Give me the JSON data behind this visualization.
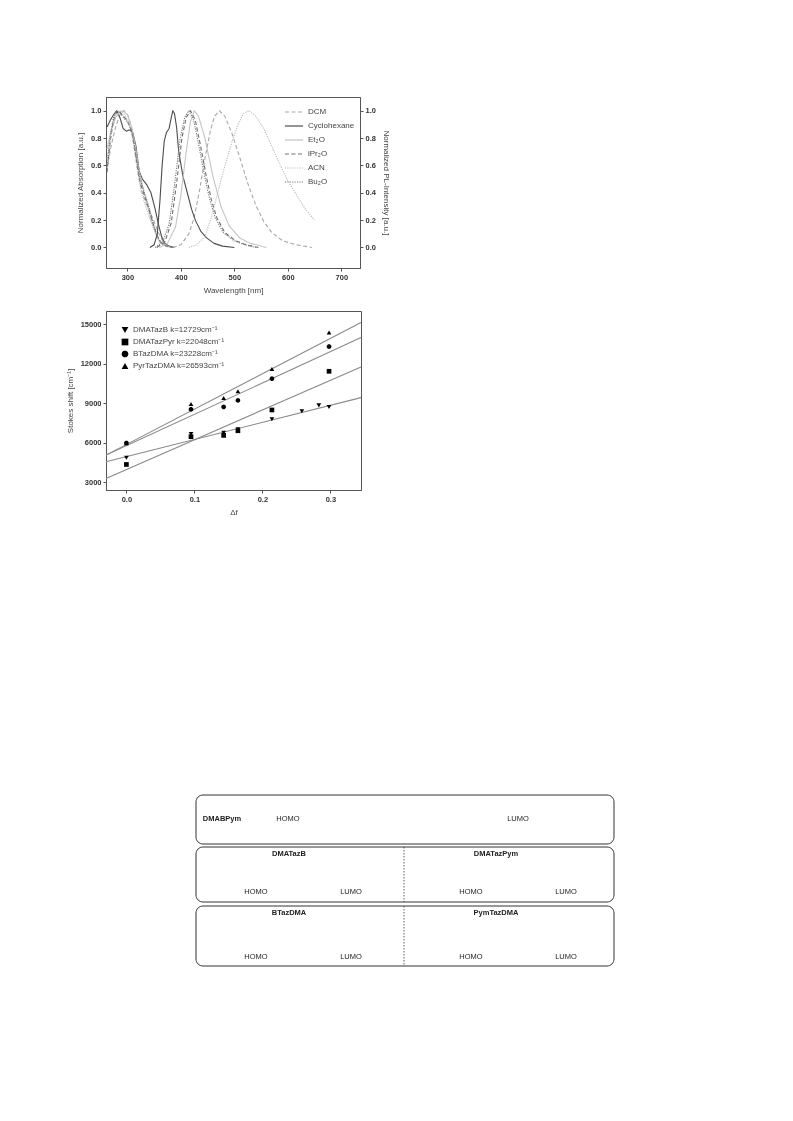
{
  "chart_data": [
    {
      "type": "line",
      "xlabel": "Wavelength [nm]",
      "ylabel": "Normalized Absorption [a.u.]",
      "y2label": "Normalized PL-Intensity [a.u.]",
      "xlim": [
        260,
        735
      ],
      "xticks": [
        300,
        400,
        500,
        600,
        700
      ],
      "ylim": [
        -0.15,
        1.1
      ],
      "yticks": [
        {
          "value": 0,
          "label": "0.0"
        },
        0.2,
        0.4,
        0.6,
        0.8,
        {
          "value": 1,
          "label": "1.0"
        }
      ],
      "y2lim": [
        -0.15,
        1.1
      ],
      "y2ticks": [
        {
          "value": 0,
          "label": "0.0"
        },
        0.2,
        0.4,
        0.6,
        0.8,
        {
          "value": 1,
          "label": "1.0"
        }
      ],
      "legend": "top right",
      "series": [
        {
          "name": "DCM",
          "color": "#a8a8a8",
          "line_style": "dashed",
          "x": [
            262,
            270,
            278,
            286,
            294,
            302,
            310,
            318,
            326,
            334,
            342,
            350,
            358,
            366,
            374,
            385
          ],
          "values": [
            0.58,
            0.75,
            0.88,
            0.97,
            1.0,
            0.96,
            0.84,
            0.62,
            0.42,
            0.33,
            0.26,
            0.19,
            0.11,
            0.05,
            0.01,
            0.0
          ]
        },
        {
          "color": "#a8a8a8",
          "line_style": "dashed",
          "axis": "y2",
          "x": [
            385,
            400,
            415,
            425,
            435,
            445,
            455,
            463,
            472,
            482,
            495,
            510,
            525,
            540,
            555,
            570,
            590,
            615,
            645
          ],
          "values": [
            0.0,
            0.02,
            0.1,
            0.22,
            0.42,
            0.65,
            0.85,
            0.96,
            1.0,
            0.96,
            0.84,
            0.66,
            0.47,
            0.31,
            0.19,
            0.11,
            0.05,
            0.02,
            0.0
          ]
        },
        {
          "name": "Cyclohexane",
          "color": "#4d4d4d",
          "line_style": "solid",
          "x": [
            262,
            268,
            274,
            280,
            286,
            292,
            298,
            304,
            310,
            316,
            322,
            328,
            336,
            344,
            352,
            358,
            364,
            370,
            378,
            388
          ],
          "values": [
            0.88,
            0.93,
            0.97,
            1.0,
            0.95,
            0.87,
            0.85,
            0.86,
            0.84,
            0.74,
            0.56,
            0.5,
            0.46,
            0.4,
            0.28,
            0.17,
            0.08,
            0.03,
            0.01,
            0.0
          ]
        },
        {
          "color": "#4d4d4d",
          "line_style": "solid",
          "axis": "y2",
          "x": [
            342,
            350,
            356,
            361,
            365,
            369,
            373,
            378,
            382,
            385,
            388,
            392,
            396,
            404,
            412,
            420,
            427,
            437,
            448,
            462,
            478,
            500
          ],
          "values": [
            0.0,
            0.02,
            0.1,
            0.35,
            0.6,
            0.78,
            0.84,
            0.87,
            0.95,
            1.0,
            0.98,
            0.88,
            0.7,
            0.52,
            0.4,
            0.28,
            0.2,
            0.12,
            0.07,
            0.03,
            0.01,
            0.0
          ]
        },
        {
          "name": "Et₂O",
          "color": "#c4c4c4",
          "line_style": "solid",
          "x": [
            262,
            270,
            278,
            286,
            292,
            300,
            308,
            315,
            322,
            330,
            338,
            346,
            354,
            362,
            372,
            385
          ],
          "values": [
            0.72,
            0.86,
            0.95,
            0.99,
            1.0,
            0.97,
            0.88,
            0.74,
            0.56,
            0.42,
            0.3,
            0.18,
            0.09,
            0.03,
            0.01,
            0.0
          ]
        },
        {
          "color": "#c4c4c4",
          "line_style": "solid",
          "axis": "y2",
          "x": [
            360,
            375,
            390,
            400,
            410,
            418,
            425,
            433,
            445,
            460,
            475,
            490,
            510,
            530,
            560
          ],
          "values": [
            0.0,
            0.03,
            0.15,
            0.38,
            0.7,
            0.92,
            1.0,
            0.96,
            0.8,
            0.52,
            0.3,
            0.16,
            0.07,
            0.03,
            0.0
          ]
        },
        {
          "name": "iPr₂O",
          "color": "#6e6e6e",
          "line_style": "dashed",
          "x": [
            262,
            268,
            274,
            280,
            284,
            292,
            300,
            308,
            315,
            322,
            330,
            338,
            346,
            354,
            362,
            372,
            385
          ],
          "values": [
            0.55,
            0.78,
            0.93,
            0.99,
            1.0,
            0.96,
            0.93,
            0.85,
            0.68,
            0.5,
            0.4,
            0.31,
            0.2,
            0.1,
            0.04,
            0.01,
            0.0
          ]
        },
        {
          "color": "#6e6e6e",
          "line_style": "dashed",
          "axis": "y2",
          "x": [
            355,
            370,
            382,
            392,
            402,
            410,
            418,
            427,
            437,
            447,
            457,
            467,
            482,
            502,
            522,
            545
          ],
          "values": [
            0.0,
            0.04,
            0.18,
            0.47,
            0.8,
            0.95,
            1.0,
            0.93,
            0.74,
            0.53,
            0.35,
            0.22,
            0.11,
            0.05,
            0.02,
            0.0
          ]
        },
        {
          "name": "ACN",
          "color": "#bdbdbd",
          "line_style": "dotted",
          "x": [
            262,
            270,
            278,
            285,
            293,
            302,
            310,
            318,
            326,
            334,
            342,
            350,
            358,
            366,
            376
          ],
          "values": [
            0.65,
            0.84,
            0.96,
            1.0,
            0.98,
            0.92,
            0.8,
            0.58,
            0.4,
            0.3,
            0.21,
            0.13,
            0.06,
            0.02,
            0.0
          ]
        },
        {
          "color": "#bdbdbd",
          "line_style": "dotted",
          "axis": "y2",
          "x": [
            415,
            430,
            445,
            457,
            467,
            477,
            487,
            497,
            507,
            517,
            527,
            540,
            555,
            570,
            586,
            600,
            617,
            633,
            650
          ],
          "values": [
            0.0,
            0.02,
            0.08,
            0.22,
            0.37,
            0.52,
            0.66,
            0.79,
            0.9,
            0.98,
            1.0,
            0.96,
            0.87,
            0.74,
            0.6,
            0.49,
            0.38,
            0.28,
            0.2
          ]
        },
        {
          "name": "Bu₂O",
          "color": "#7a7a7a",
          "line_style": "dotted",
          "x": [
            262,
            268,
            274,
            280,
            287,
            295,
            303,
            310,
            317,
            324,
            332,
            340,
            348,
            356,
            364,
            374,
            386
          ],
          "values": [
            0.6,
            0.82,
            0.95,
            1.0,
            0.98,
            0.94,
            0.9,
            0.82,
            0.66,
            0.5,
            0.4,
            0.3,
            0.18,
            0.08,
            0.03,
            0.01,
            0.0
          ]
        },
        {
          "color": "#7a7a7a",
          "line_style": "dotted",
          "axis": "y2",
          "x": [
            352,
            366,
            378,
            388,
            398,
            407,
            415,
            424,
            434,
            444,
            454,
            464,
            479,
            499,
            519,
            540
          ],
          "values": [
            0.0,
            0.04,
            0.17,
            0.45,
            0.78,
            0.95,
            1.0,
            0.93,
            0.74,
            0.53,
            0.35,
            0.22,
            0.11,
            0.05,
            0.02,
            0.0
          ]
        }
      ]
    },
    {
      "type": "scatter",
      "xlabel": "Δf",
      "ylabel": "Stokes shift [cm⁻¹]",
      "xlim": [
        -0.03,
        0.345
      ],
      "xticks": [
        {
          "value": 0,
          "label": "0.0"
        },
        0.1,
        0.2,
        0.3
      ],
      "ylim": [
        2400,
        16000
      ],
      "yticks": [
        3000,
        6000,
        9000,
        12000,
        15000
      ],
      "legend": "top left",
      "series": [
        {
          "type": "line",
          "color": "#8a8a8a",
          "line_style": "solid",
          "x": [
            -0.03,
            0.345
          ],
          "values": [
            4550,
            9420
          ]
        },
        {
          "type": "line",
          "color": "#8a8a8a",
          "line_style": "solid",
          "x": [
            -0.03,
            0.345
          ],
          "values": [
            3280,
            11750
          ]
        },
        {
          "type": "line",
          "color": "#8a8a8a",
          "line_style": "solid",
          "x": [
            -0.03,
            0.345
          ],
          "values": [
            5050,
            13980
          ]
        },
        {
          "type": "line",
          "color": "#8a8a8a",
          "line_style": "solid",
          "x": [
            -0.03,
            0.345
          ],
          "values": [
            5050,
            15120
          ]
        },
        {
          "name": "DMATazB k=12729cm⁻¹",
          "color": "#000000",
          "marker": "triangle-down",
          "x": [
            0,
            0.095,
            0.143,
            0.164,
            0.214,
            0.258,
            0.283,
            0.298
          ],
          "values": [
            4850,
            6650,
            6750,
            7010,
            7770,
            8380,
            8830,
            8710
          ]
        },
        {
          "name": "DMATazPyr k=22048cm⁻¹",
          "color": "#000000",
          "marker": "square",
          "x": [
            0,
            0.095,
            0.143,
            0.164,
            0.214,
            0.298
          ],
          "values": [
            4340,
            6450,
            6550,
            6900,
            8480,
            11420
          ]
        },
        {
          "name": "BTazDMA k=23228cm⁻¹",
          "color": "#000000",
          "marker": "circle",
          "x": [
            0,
            0.095,
            0.143,
            0.164,
            0.214,
            0.298
          ],
          "values": [
            5970,
            8530,
            8710,
            9210,
            10860,
            13300
          ]
        },
        {
          "name": "PyrTazDMA k=26593cm⁻¹",
          "color": "#000000",
          "marker": "triangle",
          "x": [
            0,
            0.095,
            0.143,
            0.164,
            0.214,
            0.298
          ],
          "values": [
            5950,
            8930,
            9390,
            9900,
            11600,
            14360
          ]
        }
      ]
    },
    {
      "type": "other",
      "annotations": [
        "DMABPym",
        "HOMO",
        "LUMO",
        "DMATazB",
        "HOMO",
        "LUMO",
        "DMATazPym",
        "HOMO",
        "LUMO",
        "BTazDMA",
        "HOMO",
        "LUMO",
        "PymTazDMA",
        "HOMO",
        "LUMO"
      ]
    }
  ]
}
